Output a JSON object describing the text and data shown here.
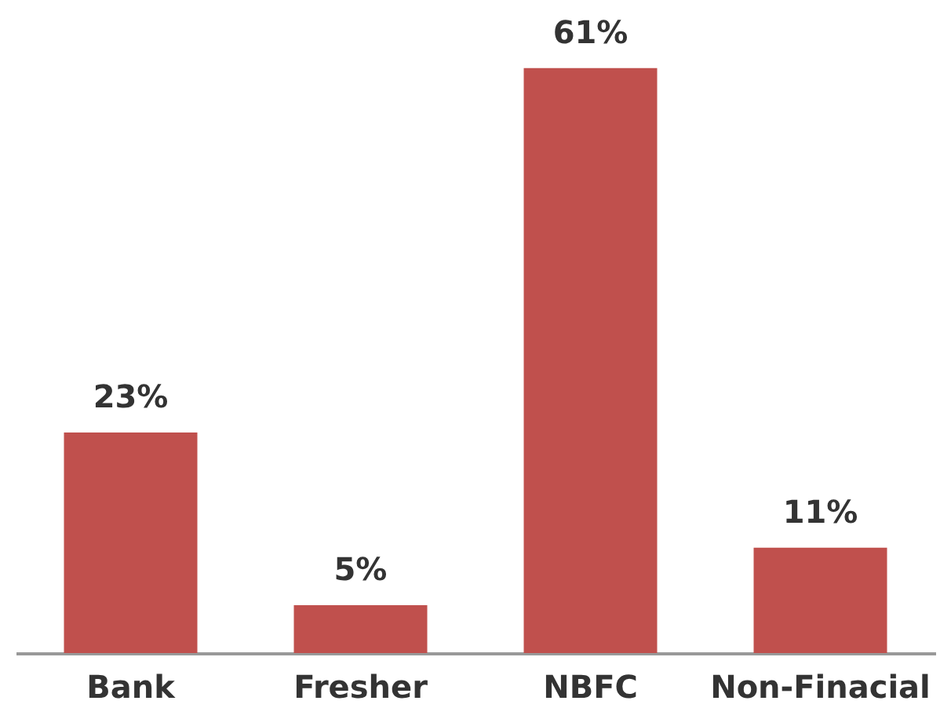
{
  "chart_data": {
    "type": "bar",
    "categories": [
      "Bank",
      "Fresher",
      "NBFC",
      "Non-Finacial"
    ],
    "values": [
      23,
      5,
      61,
      11
    ],
    "value_labels": [
      "23%",
      "5%",
      "61%",
      "11%"
    ],
    "color": "#c0504d"
  }
}
